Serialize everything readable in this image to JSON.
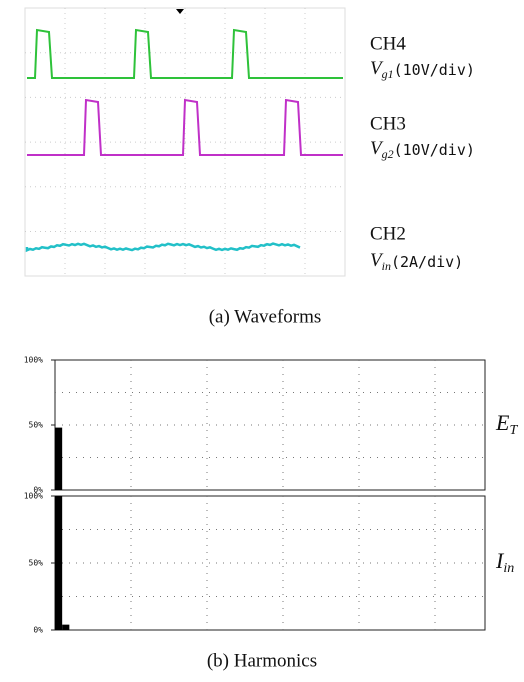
{
  "waveforms": {
    "channels": [
      {
        "name": "CH4",
        "symbol": "V",
        "subscript": "g1",
        "scale": "(10V/div)"
      },
      {
        "name": "CH3",
        "symbol": "V",
        "subscript": "g2",
        "scale": "(10V/div)"
      },
      {
        "name": "CH2",
        "symbol": "V",
        "subscript": "in",
        "scale": "(2A/div)"
      }
    ],
    "caption": "(a)  Waveforms"
  },
  "harmonics_caption": "(b)  Harmonics",
  "chart_data": [
    {
      "type": "bar",
      "label": {
        "symbol": "E",
        "subscript": "T"
      },
      "x": [
        1
      ],
      "values": [
        48
      ],
      "color": "#000000",
      "xlim": [
        0.5,
        60.5
      ],
      "ylim": [
        0,
        100
      ],
      "yticks": [
        {
          "value": 0,
          "label": "0%"
        },
        {
          "value": 50,
          "label": "50%"
        },
        {
          "value": 100,
          "label": "100%"
        }
      ],
      "grid": true
    },
    {
      "type": "bar",
      "label": {
        "symbol": "I",
        "subscript": "in"
      },
      "x": [
        1,
        2
      ],
      "values": [
        100,
        4
      ],
      "color": "#000000",
      "xlim": [
        0.5,
        60.5
      ],
      "ylim": [
        0,
        100
      ],
      "yticks": [
        {
          "value": 0,
          "label": "0%"
        },
        {
          "value": 50,
          "label": "50%"
        },
        {
          "value": 100,
          "label": "100%"
        }
      ],
      "grid": true
    }
  ]
}
